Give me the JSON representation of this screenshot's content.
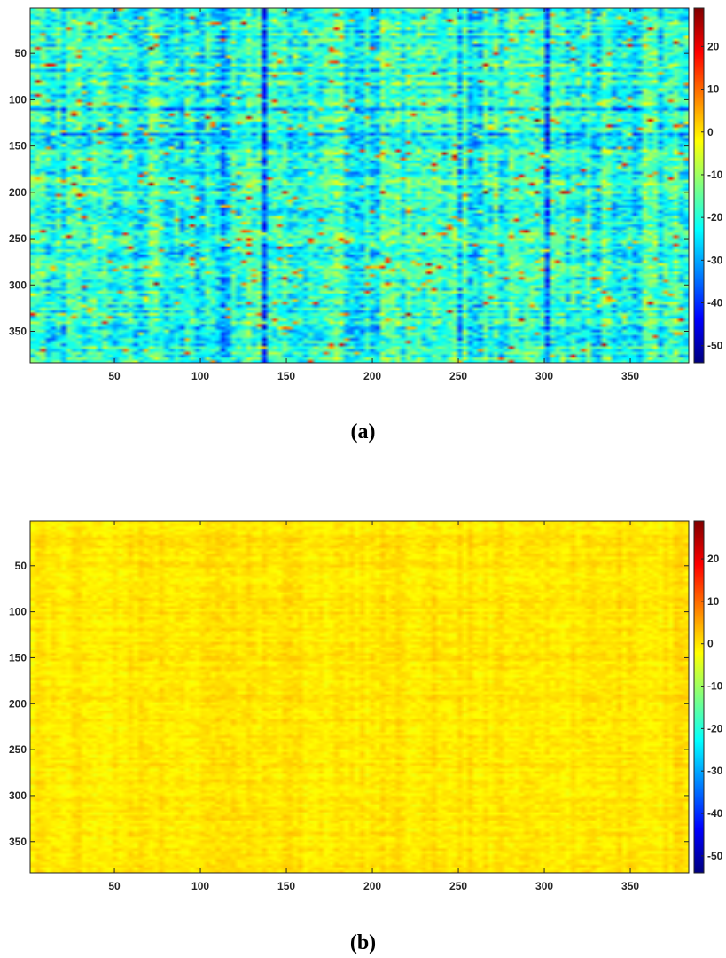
{
  "chart_data": [
    {
      "type": "heatmap",
      "panel_label": "(a)",
      "x_ticks": [
        50,
        100,
        150,
        200,
        250,
        300,
        350
      ],
      "y_ticks": [
        50,
        100,
        150,
        200,
        250,
        300,
        350
      ],
      "xlim": [
        1,
        384
      ],
      "ylim": [
        1,
        384
      ],
      "y_direction": "reversed",
      "colorbar": {
        "ticks": [
          20,
          10,
          0,
          -10,
          -20,
          -30,
          -40,
          -50
        ],
        "range": [
          -54,
          29
        ],
        "colormap": "jet"
      },
      "value_summary": {
        "typical_range": [
          -35,
          -5
        ],
        "typical_value": -20,
        "notes": "Noisy cyan/green field with many vertical and horizontal stripes; darker blue columns near x≈112, 135 and 250; yellow/orange/red speckles scattered throughout"
      }
    },
    {
      "type": "heatmap",
      "panel_label": "(b)",
      "x_ticks": [
        50,
        100,
        150,
        200,
        250,
        300,
        350
      ],
      "y_ticks": [
        50,
        100,
        150,
        200,
        250,
        300,
        350
      ],
      "xlim": [
        1,
        384
      ],
      "ylim": [
        1,
        384
      ],
      "y_direction": "reversed",
      "colorbar": {
        "ticks": [
          20,
          10,
          0,
          -10,
          -20,
          -30,
          -40,
          -50
        ],
        "range": [
          -54,
          29
        ],
        "colormap": "jet"
      },
      "value_summary": {
        "typical_range": [
          -3,
          3
        ],
        "typical_value": 0,
        "notes": "Almost uniform yellow field with very faint vertical banding"
      }
    }
  ]
}
